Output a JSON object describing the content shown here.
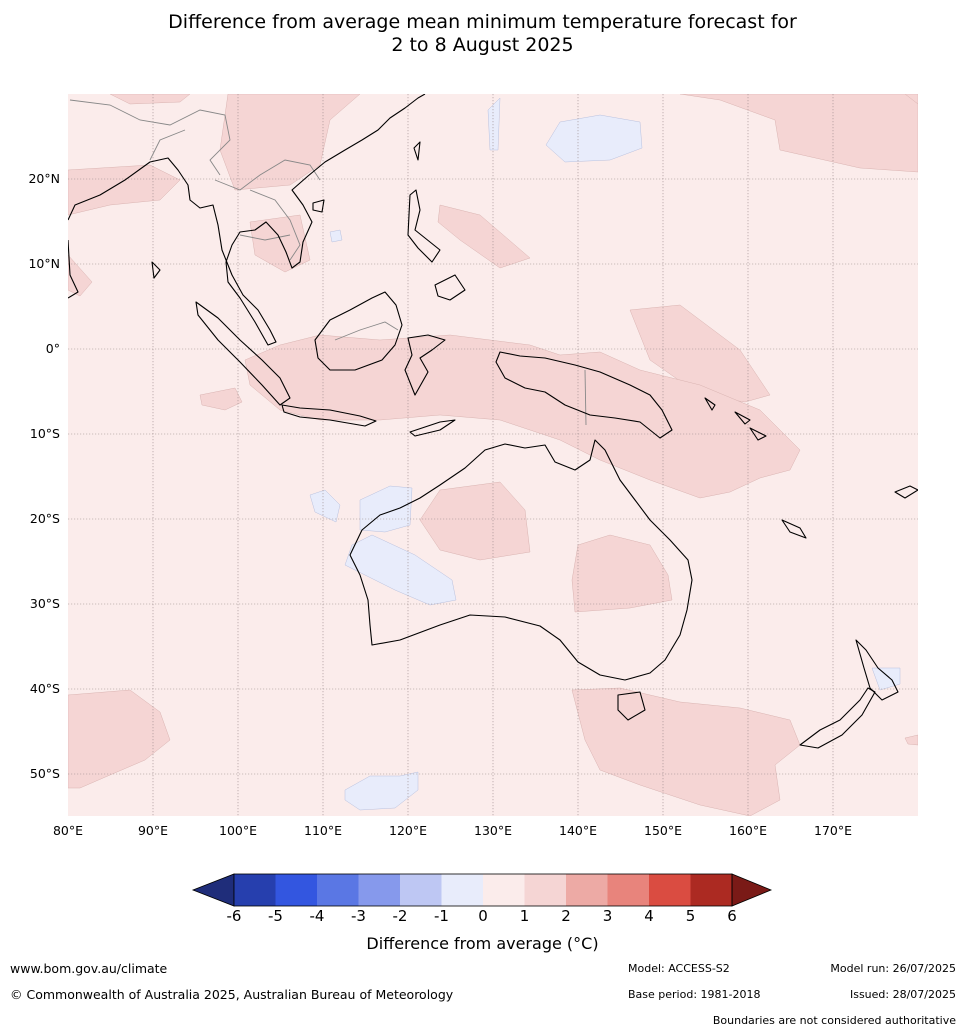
{
  "title_line1": "Difference from average mean minimum temperature forecast for",
  "title_line2": "2 to 8 August 2025",
  "lat_labels": [
    "20°N",
    "10°N",
    "0°",
    "10°S",
    "20°S",
    "30°S",
    "40°S",
    "50°S"
  ],
  "lon_labels": [
    "80°E",
    "90°E",
    "100°E",
    "110°E",
    "120°E",
    "130°E",
    "140°E",
    "150°E",
    "160°E",
    "170°E"
  ],
  "colorbar": {
    "ticks": [
      "-6",
      "-5",
      "-4",
      "-3",
      "-2",
      "-1",
      "0",
      "1",
      "2",
      "3",
      "4",
      "5",
      "6"
    ],
    "colors": [
      "#1f2d7a",
      "#263fae",
      "#3356e0",
      "#5a77e4",
      "#8699ec",
      "#bec7f3",
      "#e8ecfb",
      "#fbeceb",
      "#f5d5d4",
      "#edaaa5",
      "#e8847c",
      "#da4c41",
      "#ac2a22",
      "#7a1a17"
    ],
    "label": "Difference from average (°C)"
  },
  "footer": {
    "url": "www.bom.gov.au/climate",
    "copyright": "© Commonwealth of Australia 2025, Australian Bureau of Meteorology",
    "model": "Model: ACCESS-S2",
    "base_period": "Base period: 1981-2018",
    "model_run": "Model run: 26/07/2025",
    "issued": "Issued: 28/07/2025",
    "disclaimer": "Boundaries are not considered authoritative"
  }
}
